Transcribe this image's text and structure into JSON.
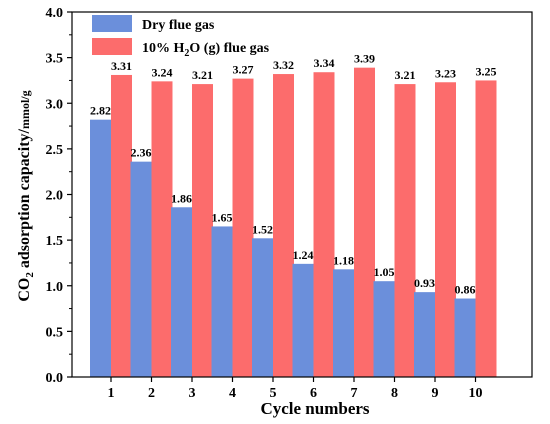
{
  "chart_data": {
    "type": "bar",
    "categories": [
      "1",
      "2",
      "3",
      "4",
      "5",
      "6",
      "7",
      "8",
      "9",
      "10"
    ],
    "series": [
      {
        "name": "Dry flue gas",
        "color": "#6b8fdb",
        "values": [
          2.82,
          2.36,
          1.86,
          1.65,
          1.52,
          1.24,
          1.18,
          1.05,
          0.93,
          0.86
        ],
        "labels": [
          "2.82",
          "2.36",
          "1.86",
          "1.65",
          "1.52",
          "1.24",
          "1.18",
          "1.05",
          "0.93",
          "0.86"
        ]
      },
      {
        "name": "10% H₂O (g) flue gas",
        "color": "#fc6c6c",
        "values": [
          3.31,
          3.24,
          3.21,
          3.27,
          3.32,
          3.34,
          3.39,
          3.21,
          3.23,
          3.25
        ],
        "labels": [
          "3.31",
          "3.24",
          "3.21",
          "3.27",
          "3.32",
          "3.34",
          "3.39",
          "3.21",
          "3.23",
          "3.25"
        ]
      }
    ],
    "xlabel": "Cycle numbers",
    "ylabel": "CO₂ adsorption capacity/mmol/g",
    "ylim": [
      0.0,
      4.0
    ],
    "yticks": [
      "0.0",
      "0.5",
      "1.0",
      "1.5",
      "2.0",
      "2.5",
      "3.0",
      "3.5",
      "4.0"
    ],
    "grid": false,
    "legend_position": "top-left"
  },
  "legend": {
    "dry_label": "Dry flue gas",
    "wet_label_prefix": "10% H",
    "wet_label_sub": "2",
    "wet_label_suffix": "O (g) flue gas"
  },
  "axes": {
    "x_title": "Cycle numbers",
    "y_title_main": "CO",
    "y_title_sub": "2",
    "y_title_rest": " adsorption capacity/",
    "y_title_unit": "mmol/g"
  }
}
